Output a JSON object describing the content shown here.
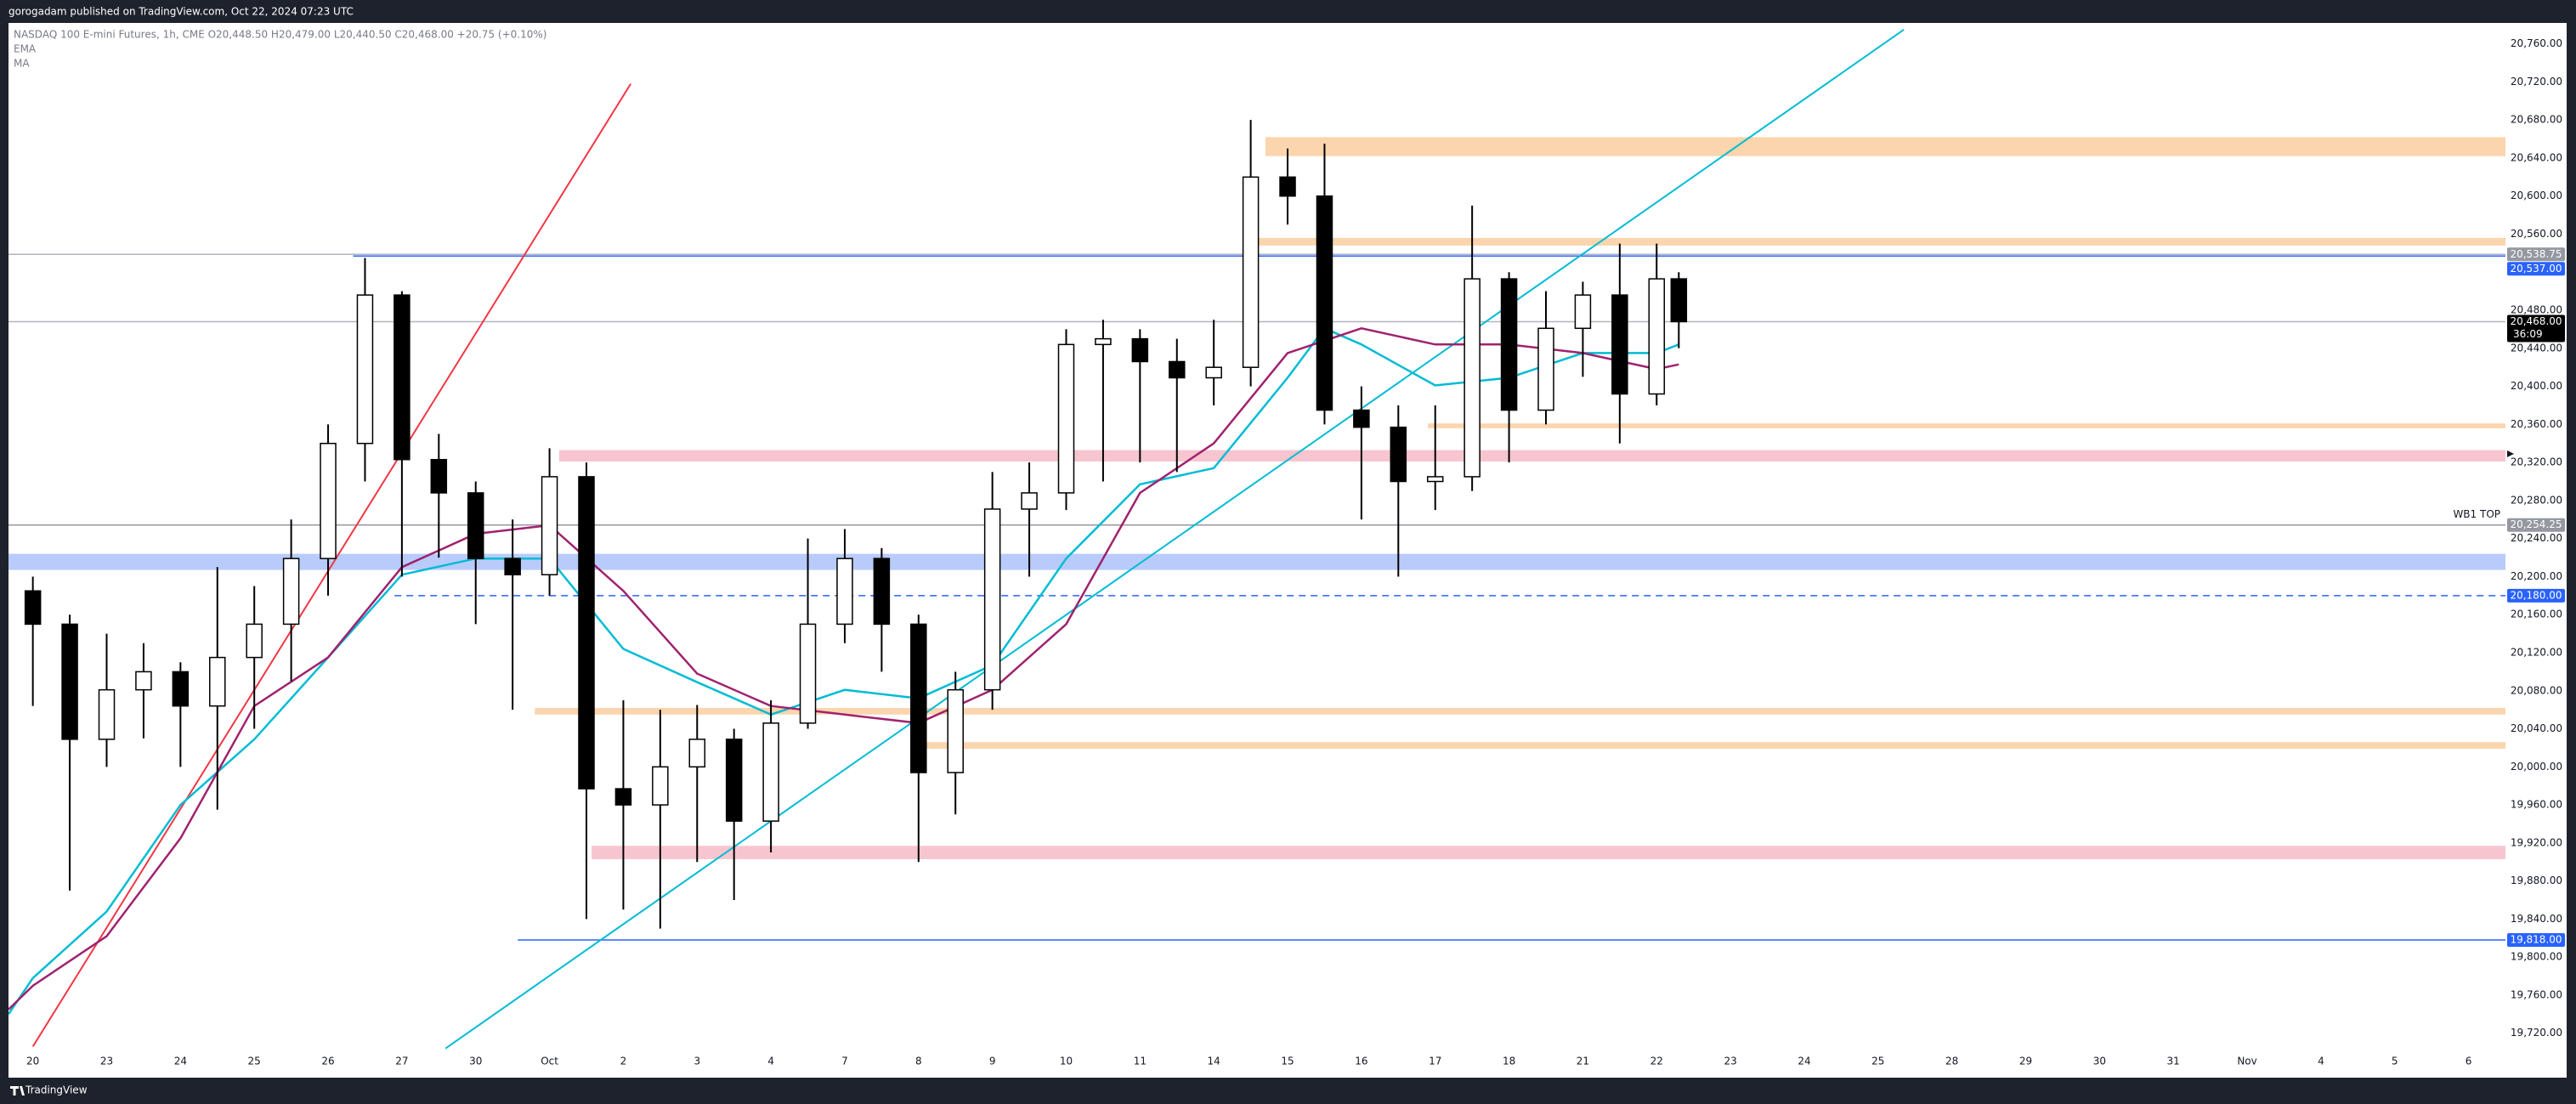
{
  "chart_data": {
    "type": "candlestick",
    "header": "gorogadam published on TradingView.com, Oct 22, 2024 07:23 UTC",
    "legend": "NASDAQ 100 E-mini Futures, 1h, CME  O20,448.50  H20,479.00  L20,440.50  C20,468.00  +20.75 (+0.10%)",
    "footer": "TradingView",
    "categories": [
      "20",
      "23",
      "24",
      "25",
      "26",
      "27",
      "30",
      "Oct",
      "2",
      "3",
      "4",
      "7",
      "8",
      "9",
      "10",
      "11",
      "14",
      "15",
      "16",
      "17",
      "18",
      "21",
      "22",
      "23",
      "24",
      "25",
      "28",
      "29",
      "30",
      "31",
      "Nov",
      "4",
      "5",
      "6"
    ],
    "xlim": [
      -0.33,
      33.5
    ],
    "ylim": [
      19701,
      20782
    ],
    "grid": false,
    "yticks": [
      {
        "value": 20760,
        "label": "20,760.00"
      },
      {
        "value": 20720,
        "label": "20,720.00"
      },
      {
        "value": 20680,
        "label": "20,680.00"
      },
      {
        "value": 20640,
        "label": "20,640.00"
      },
      {
        "value": 20600,
        "label": "20,600.00"
      },
      {
        "value": 20560,
        "label": "20,560.00"
      },
      {
        "value": 20480,
        "label": "20,480.00"
      },
      {
        "value": 20440,
        "label": "20,440.00"
      },
      {
        "value": 20400,
        "label": "20,400.00"
      },
      {
        "value": 20360,
        "label": "20,360.00"
      },
      {
        "value": 20320,
        "label": "20,320.00"
      },
      {
        "value": 20280,
        "label": "20,280.00"
      },
      {
        "value": 20240,
        "label": "20,240.00"
      },
      {
        "value": 20200,
        "label": "20,200.00"
      },
      {
        "value": 20160,
        "label": "20,160.00"
      },
      {
        "value": 20120,
        "label": "20,120.00"
      },
      {
        "value": 20080,
        "label": "20,080.00"
      },
      {
        "value": 20040,
        "label": "20,040.00"
      },
      {
        "value": 20000,
        "label": "20,000.00"
      },
      {
        "value": 19960,
        "label": "19,960.00"
      },
      {
        "value": 19920,
        "label": "19,920.00"
      },
      {
        "value": 19880,
        "label": "19,880.00"
      },
      {
        "value": 19840,
        "label": "19,840.00"
      },
      {
        "value": 19800,
        "label": "19,800.00"
      },
      {
        "value": 19760,
        "label": "19,760.00"
      },
      {
        "value": 19720,
        "label": "19,720.00"
      }
    ],
    "candles": {
      "x": [
        0,
        0.5,
        1,
        1.5,
        2,
        2.5,
        3,
        3.5,
        4,
        4.5,
        5,
        5.5,
        6,
        6.5,
        7,
        7.5,
        8,
        8.5,
        9,
        9.5,
        10,
        10.5,
        11,
        11.5,
        12,
        12.5,
        13,
        13.5,
        14,
        14.5,
        15,
        15.5,
        16,
        16.5,
        17,
        17.5,
        18,
        18.5,
        19,
        19.5,
        20,
        20.5,
        21,
        21.5,
        22,
        22.3
      ],
      "open": [
        20185,
        20150,
        20029,
        20081,
        20100,
        20064,
        20115,
        20150,
        20219,
        20340,
        20496,
        20323,
        20288,
        20219,
        20202,
        20305,
        19977,
        19960,
        20000,
        20029,
        19943,
        20046,
        20150,
        20219,
        20150,
        19994,
        20081,
        20271,
        20288,
        20444,
        20450,
        20426,
        20409,
        20420,
        20620,
        20600,
        20375,
        20357,
        20300,
        20305,
        20513,
        20375,
        20461,
        20496,
        20392,
        20513
      ],
      "high": [
        20200,
        20160,
        20140,
        20130,
        20110,
        20210,
        20190,
        20260,
        20360,
        20535,
        20500,
        20350,
        20300,
        20260,
        20335,
        20320,
        20070,
        20060,
        20065,
        20040,
        20070,
        20240,
        20250,
        20230,
        20160,
        20100,
        20310,
        20320,
        20460,
        20470,
        20460,
        20450,
        20470,
        20680,
        20650,
        20655,
        20400,
        20380,
        20380,
        20590,
        20520,
        20500,
        20510,
        20550,
        20550,
        20520
      ],
      "low": [
        20064,
        19870,
        20000,
        20030,
        20000,
        19955,
        20040,
        20090,
        20180,
        20300,
        20200,
        20220,
        20150,
        20060,
        20180,
        19840,
        19850,
        19830,
        19900,
        19860,
        19910,
        20040,
        20130,
        20100,
        19900,
        19950,
        20060,
        20200,
        20270,
        20300,
        20320,
        20310,
        20380,
        20400,
        20570,
        20360,
        20260,
        20200,
        20270,
        20290,
        20320,
        20360,
        20410,
        20340,
        20380,
        20440
      ],
      "close": [
        20150,
        20029,
        20081,
        20100,
        20064,
        20115,
        20150,
        20219,
        20340,
        20496,
        20323,
        20288,
        20219,
        20202,
        20305,
        19977,
        19960,
        20000,
        20029,
        19943,
        20046,
        20150,
        20219,
        20150,
        19994,
        20081,
        20271,
        20288,
        20444,
        20450,
        20426,
        20409,
        20420,
        20620,
        20600,
        20375,
        20357,
        20300,
        20305,
        20513,
        20375,
        20461,
        20496,
        20392,
        20513,
        20468
      ]
    },
    "series": [
      {
        "name": "EMA",
        "color": "#00bcd4",
        "x": [
          -0.33,
          0,
          1,
          2,
          3,
          4,
          5,
          6,
          7,
          8,
          9,
          10,
          11,
          12,
          13,
          14,
          15,
          16,
          17,
          17.5,
          18,
          19,
          20,
          21,
          22,
          22.3
        ],
        "values": [
          19740,
          19778,
          19848,
          19960,
          20029,
          20115,
          20202,
          20219,
          20219,
          20124,
          20089,
          20055,
          20081,
          20072,
          20107,
          20219,
          20297,
          20314,
          20409,
          20461,
          20444,
          20401,
          20409,
          20435,
          20435,
          20444
        ]
      },
      {
        "name": "MA",
        "color": "#a0226e",
        "x": [
          -0.33,
          0,
          1,
          2,
          3,
          4,
          5,
          6,
          7,
          8,
          9,
          10,
          11,
          12,
          13,
          14,
          15,
          16,
          17,
          18,
          19,
          20,
          21,
          22,
          22.3
        ],
        "values": [
          19745,
          19770,
          19822,
          19925,
          20064,
          20115,
          20210,
          20245,
          20254,
          20185,
          20098,
          20064,
          20055,
          20046,
          20081,
          20150,
          20288,
          20340,
          20435,
          20461,
          20444,
          20444,
          20435,
          20418,
          20423
        ]
      }
    ],
    "zones": [
      {
        "color": "#fbd5ad",
        "from": 16.7,
        "low": 20642,
        "high": 20662
      },
      {
        "color": "#fbd5ad",
        "from": 16.6,
        "low": 20548,
        "high": 20556
      },
      {
        "color": "#f7c5d0",
        "from": 7.13,
        "low": 20321,
        "high": 20333
      },
      {
        "color": "#fbd5ad",
        "from": 18.9,
        "low": 20356,
        "high": 20361
      },
      {
        "color": "#b9cbfb",
        "from": -0.33,
        "low": 20207,
        "high": 20224
      },
      {
        "color": "#fbd5ad",
        "from": 6.8,
        "low": 20055,
        "high": 20062
      },
      {
        "color": "#fbd5ad",
        "from": 12.1,
        "low": 20019,
        "high": 20026
      },
      {
        "color": "#f7c5d0",
        "from": 7.57,
        "low": 19903,
        "high": 19917
      }
    ],
    "trendlines": [
      {
        "color": "#f23645",
        "x": [
          0,
          8.1
        ],
        "y": [
          19706,
          20718
        ]
      },
      {
        "color": "#00bcd4",
        "x": [
          5.59,
          25.35
        ],
        "y": [
          19704,
          20775
        ]
      }
    ],
    "levels": [
      {
        "value": 20538.75,
        "label": "20,538.75",
        "color": "#9598a1",
        "line_color": "#b2b5be",
        "from": -0.33
      },
      {
        "value": 20537,
        "label": "20,537.00",
        "color": "#2962ff",
        "line_color": "#2962ff",
        "from": 4.34
      },
      {
        "value": 20468,
        "label": "20,468.00",
        "color": "#000000",
        "line_color": "#b2b5be",
        "from": -0.33,
        "countdown": "36:09"
      },
      {
        "value": 20254.25,
        "label": "20,254.25",
        "color": "#9598a1",
        "line_color": "#9598a1",
        "from": -0.33,
        "note": "WB1 TOP"
      },
      {
        "value": 20180,
        "label": "20,180.00",
        "color": "#2962ff",
        "line_color": "#2962ff",
        "from": 4.9,
        "dashed": true
      },
      {
        "value": 19818,
        "label": "19,818.00",
        "color": "#2962ff",
        "line_color": "#2962ff",
        "from": 6.57
      }
    ]
  }
}
